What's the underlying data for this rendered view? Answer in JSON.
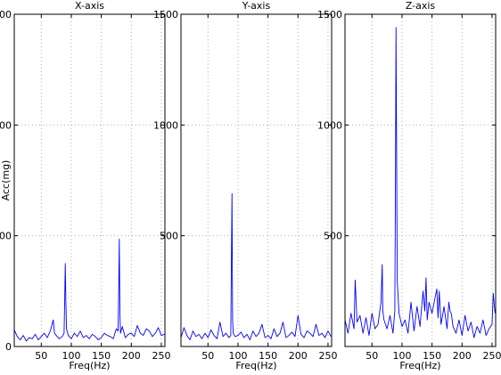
{
  "colors": {
    "trace": "#0000ff",
    "grid": "#b0b0b0",
    "axes": "#000000"
  },
  "chart_data": [
    {
      "type": "line",
      "title": "X-axis",
      "xlabel": "Freq(Hz)",
      "ylabel": "Acc(mg)",
      "xlim": [
        5,
        256
      ],
      "ylim": [
        0,
        1500
      ],
      "xticks": [
        50,
        100,
        150,
        200,
        250
      ],
      "yticks": [
        0,
        500,
        1000,
        1500
      ],
      "grid": true,
      "series": [
        {
          "x": [
            5,
            10,
            15,
            20,
            25,
            30,
            35,
            40,
            45,
            50,
            55,
            60,
            65,
            70,
            72,
            75,
            80,
            85,
            88,
            89,
            90,
            91,
            92,
            95,
            100,
            105,
            110,
            115,
            120,
            125,
            130,
            135,
            140,
            145,
            150,
            155,
            160,
            165,
            170,
            175,
            178,
            179,
            180,
            181,
            182,
            185,
            190,
            195,
            200,
            205,
            210,
            215,
            220,
            225,
            230,
            235,
            240,
            245,
            250,
            255
          ],
          "y": [
            75,
            45,
            30,
            50,
            25,
            40,
            35,
            55,
            30,
            45,
            60,
            40,
            70,
            120,
            60,
            50,
            35,
            45,
            60,
            210,
            375,
            200,
            80,
            50,
            35,
            60,
            45,
            70,
            40,
            50,
            35,
            55,
            45,
            30,
            40,
            60,
            50,
            45,
            35,
            80,
            70,
            250,
            485,
            150,
            60,
            90,
            40,
            55,
            60,
            45,
            95,
            60,
            50,
            80,
            70,
            45,
            60,
            85,
            50,
            55
          ]
        }
      ]
    },
    {
      "type": "line",
      "title": "Y-axis",
      "xlabel": "Freq(Hz)",
      "ylabel": "",
      "xlim": [
        5,
        256
      ],
      "ylim": [
        0,
        1500
      ],
      "xticks": [
        50,
        100,
        150,
        200,
        250
      ],
      "yticks": [
        500,
        1000,
        1500
      ],
      "grid": true,
      "series": [
        {
          "x": [
            5,
            10,
            15,
            20,
            25,
            30,
            35,
            40,
            45,
            50,
            55,
            60,
            65,
            70,
            75,
            80,
            85,
            88,
            89,
            90,
            91,
            92,
            95,
            100,
            105,
            110,
            115,
            120,
            125,
            130,
            135,
            140,
            145,
            150,
            155,
            160,
            165,
            170,
            175,
            180,
            185,
            190,
            195,
            200,
            205,
            210,
            215,
            220,
            225,
            230,
            235,
            240,
            245,
            250,
            255
          ],
          "y": [
            40,
            85,
            50,
            30,
            70,
            45,
            55,
            35,
            60,
            40,
            75,
            50,
            35,
            110,
            45,
            60,
            40,
            50,
            380,
            690,
            120,
            60,
            45,
            50,
            65,
            40,
            55,
            30,
            70,
            45,
            60,
            100,
            40,
            50,
            35,
            80,
            45,
            60,
            110,
            40,
            50,
            65,
            45,
            140,
            55,
            40,
            70,
            60,
            45,
            100,
            50,
            60,
            40,
            70,
            45
          ]
        }
      ]
    },
    {
      "type": "line",
      "title": "Z-axis",
      "xlabel": "Freq(Hz)",
      "ylabel": "",
      "xlim": [
        5,
        256
      ],
      "ylim": [
        0,
        1500
      ],
      "xticks": [
        50,
        100,
        150,
        200,
        250
      ],
      "yticks": [
        500,
        1000,
        1500
      ],
      "grid": true,
      "series": [
        {
          "x": [
            5,
            10,
            15,
            20,
            22,
            25,
            30,
            35,
            40,
            45,
            50,
            55,
            60,
            65,
            67,
            68,
            70,
            75,
            80,
            85,
            88,
            89,
            90,
            91,
            92,
            95,
            100,
            105,
            110,
            115,
            120,
            125,
            130,
            135,
            138,
            140,
            142,
            145,
            150,
            155,
            158,
            160,
            162,
            165,
            170,
            175,
            178,
            180,
            182,
            185,
            190,
            195,
            200,
            205,
            210,
            215,
            220,
            225,
            230,
            235,
            240,
            245,
            250,
            252,
            255
          ],
          "y": [
            120,
            60,
            150,
            80,
            300,
            110,
            140,
            60,
            130,
            50,
            150,
            80,
            100,
            200,
            370,
            160,
            120,
            80,
            140,
            60,
            160,
            700,
            1440,
            880,
            300,
            150,
            90,
            120,
            60,
            200,
            70,
            180,
            90,
            250,
            160,
            310,
            120,
            200,
            150,
            220,
            260,
            130,
            250,
            100,
            180,
            80,
            200,
            160,
            150,
            90,
            60,
            120,
            50,
            140,
            70,
            110,
            40,
            90,
            60,
            120,
            50,
            80,
            100,
            240,
            150
          ]
        }
      ]
    }
  ]
}
